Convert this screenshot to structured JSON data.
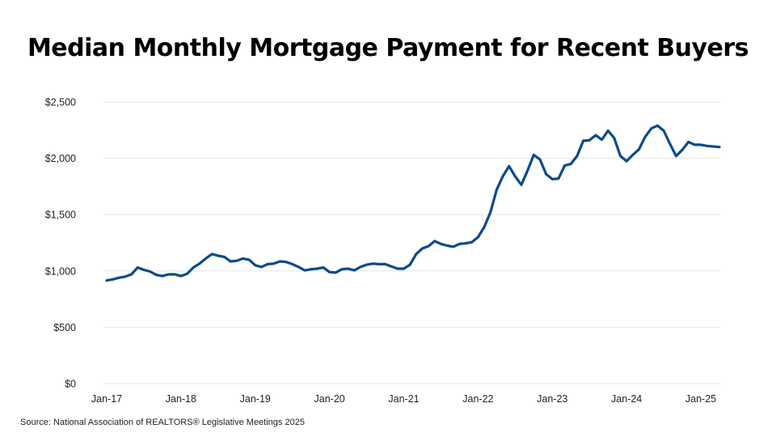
{
  "chart_data": {
    "type": "line",
    "title": "Median Monthly Mortgage Payment for Recent Buyers",
    "source": "Source: National Association of REALTORS® Legislative Meetings 2025",
    "xlabel": "",
    "ylabel": "",
    "ylim": [
      0,
      2500
    ],
    "yticks": [
      0,
      500,
      1000,
      1500,
      2000,
      2500
    ],
    "yticklabels": [
      "$0",
      "$500",
      "$1,000",
      "$1,500",
      "$2,000",
      "$2,500"
    ],
    "xticks": [
      "Jan-17",
      "Jan-18",
      "Jan-19",
      "Jan-20",
      "Jan-21",
      "Jan-22",
      "Jan-23",
      "Jan-24",
      "Jan-25"
    ],
    "grid": "horizontal",
    "line_color": "#0d4a8c",
    "grid_color": "#e6e6e6",
    "series": [
      {
        "x_start": "Jan-17",
        "frequency": "monthly",
        "values": [
          915,
          925,
          940,
          950,
          970,
          1030,
          1010,
          995,
          965,
          955,
          970,
          970,
          955,
          975,
          1030,
          1065,
          1110,
          1150,
          1135,
          1125,
          1085,
          1090,
          1110,
          1100,
          1050,
          1035,
          1060,
          1065,
          1085,
          1080,
          1060,
          1035,
          1005,
          1015,
          1020,
          1030,
          990,
          985,
          1015,
          1020,
          1005,
          1035,
          1055,
          1065,
          1060,
          1060,
          1040,
          1020,
          1020,
          1055,
          1150,
          1200,
          1220,
          1265,
          1240,
          1225,
          1215,
          1240,
          1245,
          1255,
          1300,
          1390,
          1520,
          1720,
          1840,
          1930,
          1840,
          1765,
          1890,
          2030,
          1990,
          1860,
          1815,
          1820,
          1935,
          1950,
          2020,
          2155,
          2160,
          2205,
          2165,
          2245,
          2180,
          2020,
          1975,
          2030,
          2080,
          2190,
          2265,
          2290,
          2245,
          2130,
          2020,
          2075,
          2145,
          2120,
          2120,
          2110,
          2105,
          2100
        ]
      }
    ]
  }
}
